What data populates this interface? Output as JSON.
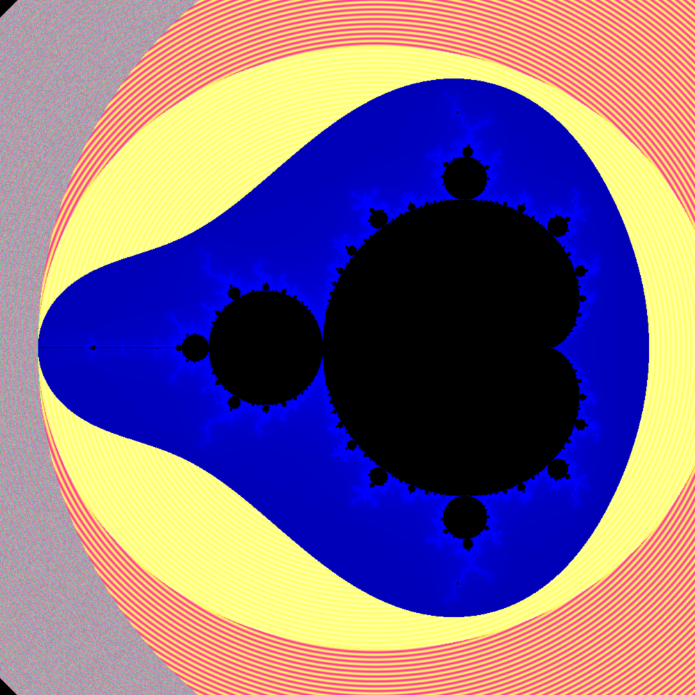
{
  "image": {
    "subject": "mandelbrot-set",
    "colors": {
      "set_interior": "#000000",
      "near_boundary_band": "#0000ff",
      "bright_band": "#ffff66",
      "outer_band": "#ff3399",
      "far_field_noise_tint": "#33aa88"
    }
  }
}
